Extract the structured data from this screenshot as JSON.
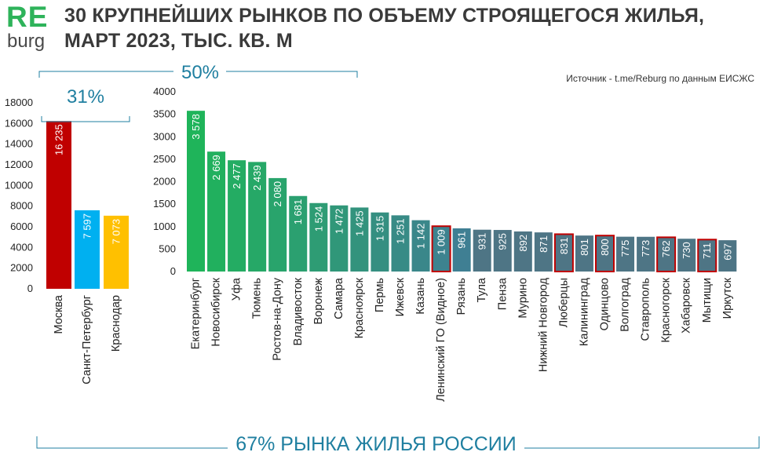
{
  "header": {
    "logo_re": "RE",
    "logo_burg": "burg",
    "title_line1": "30 КРУПНЕЙШИХ РЫНКОВ ПО ОБЪЕМУ СТРОЯЩЕГОСЯ ЖИЛЬЯ,",
    "title_line2": "МАРТ 2023, ТЫС. КВ. М",
    "source": "Источник - t.me/Reburg по данным ЕИСЖС"
  },
  "annotations": {
    "share_top3": "31%",
    "share_others": "50%",
    "share_total": "67% РЫНКА ЖИЛЬЯ РОССИИ"
  },
  "colors": {
    "moscow": "#c00000",
    "spb": "#00b0f0",
    "krasnodar": "#ffc000",
    "gradient_start": "#1fb45a",
    "gradient_end": "#3f7f93",
    "tail": "#4e7585",
    "highlight_border": "#c00000",
    "bracket": "#1f7fa0"
  },
  "chart_data": [
    {
      "type": "bar",
      "title": "",
      "ylim": [
        0,
        18000
      ],
      "yticks": [
        0,
        2000,
        4000,
        6000,
        8000,
        10000,
        12000,
        14000,
        16000,
        18000
      ],
      "categories": [
        "Москва",
        "Санкт-Петербург",
        "Краснодар"
      ],
      "values": [
        16235,
        7597,
        7073
      ],
      "value_labels": [
        "16 235",
        "7 597",
        "7 073"
      ]
    },
    {
      "type": "bar",
      "title": "",
      "ylim": [
        0,
        4000
      ],
      "yticks": [
        0,
        500,
        1000,
        1500,
        2000,
        2500,
        3000,
        3500,
        4000
      ],
      "categories": [
        "Екатеринбург",
        "Новосибирск",
        "Уфа",
        "Тюмень",
        "Ростов-на-Дону",
        "Владивосток",
        "Воронеж",
        "Самара",
        "Красноярск",
        "Пермь",
        "Ижевск",
        "Казань",
        "Ленинский ГО (Видное)",
        "Рязань",
        "Тула",
        "Пенза",
        "Мурино",
        "Нижний Новгород",
        "Люберцы",
        "Калининград",
        "Одинцово",
        "Волгоград",
        "Ставрополь",
        "Красногорск",
        "Хабаровск",
        "Мытищи",
        "Иркутск"
      ],
      "values": [
        3578,
        2669,
        2477,
        2439,
        2080,
        1681,
        1524,
        1472,
        1425,
        1315,
        1251,
        1142,
        1009,
        961,
        931,
        925,
        892,
        871,
        831,
        801,
        800,
        775,
        773,
        762,
        730,
        711,
        697
      ],
      "value_labels": [
        "3 578",
        "2 669",
        "2 477",
        "2 439",
        "2 080",
        "1 681",
        "1 524",
        "1 472",
        "1 425",
        "1 315",
        "1 251",
        "1 142",
        "1 009",
        "961",
        "931",
        "925",
        "892",
        "871",
        "831",
        "801",
        "800",
        "775",
        "773",
        "762",
        "730",
        "711",
        "697"
      ],
      "highlighted": [
        "Ленинский ГО (Видное)",
        "Люберцы",
        "Одинцово",
        "Красногорск",
        "Мытищи"
      ]
    }
  ]
}
